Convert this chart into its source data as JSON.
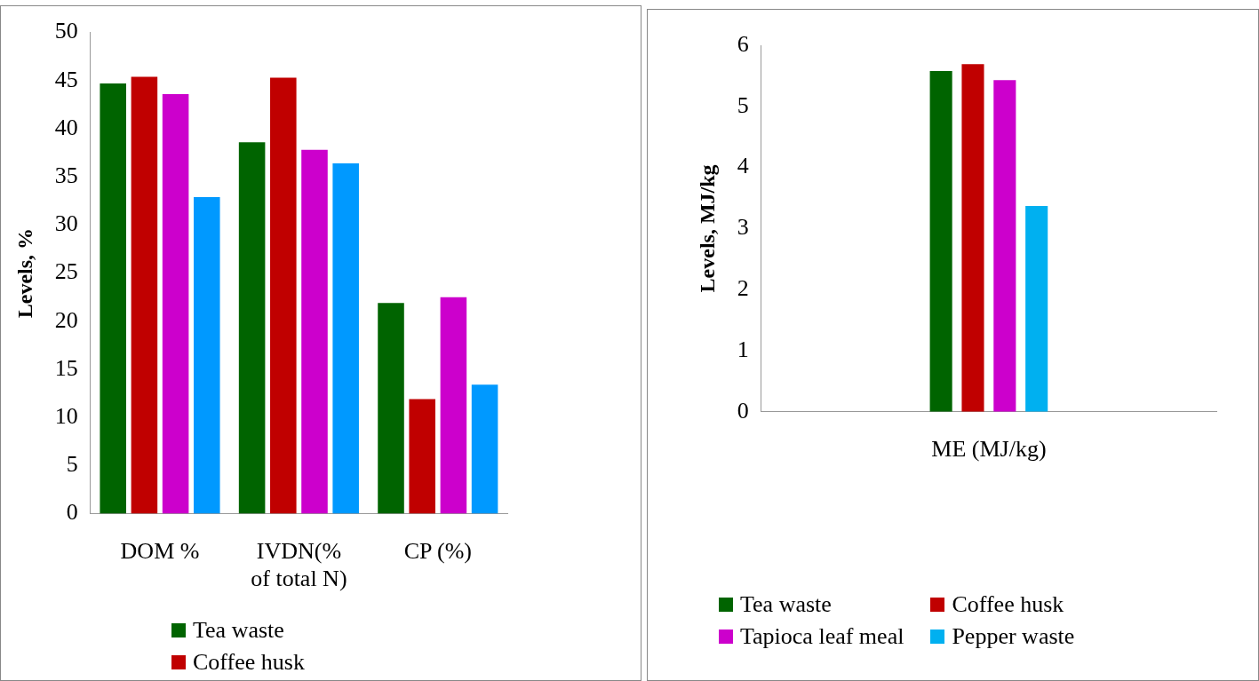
{
  "chart_data": [
    {
      "type": "bar",
      "ylabel": "Levels, %",
      "categories": [
        "DOM %",
        "IVDN(% of total N)",
        "CP (%)"
      ],
      "ylim": [
        0,
        50
      ],
      "yticks": [
        0,
        5,
        10,
        15,
        20,
        25,
        30,
        35,
        40,
        45,
        50
      ],
      "grid": false,
      "legend": "bottom",
      "series": [
        {
          "name": "Tea waste",
          "color": "#006400",
          "values": [
            44.7,
            38.6,
            21.9
          ]
        },
        {
          "name": "Coffee husk",
          "color": "#c00000",
          "values": [
            45.4,
            45.3,
            11.9
          ]
        },
        {
          "color": "#cc00cc",
          "values": [
            43.6,
            37.8,
            22.5
          ]
        },
        {
          "color": "#0099ff",
          "values": [
            32.9,
            36.4,
            13.4
          ]
        }
      ]
    },
    {
      "type": "bar",
      "ylabel": "Levels, MJ/kg",
      "categories": [
        "ME (MJ/kg)"
      ],
      "ylim": [
        0,
        6
      ],
      "yticks": [
        0,
        1,
        2,
        3,
        4,
        5,
        6
      ],
      "grid": false,
      "legend": "bottom",
      "series": [
        {
          "name": "Tea waste",
          "color": "#006400",
          "values": [
            5.58
          ]
        },
        {
          "name": "Coffee husk",
          "color": "#c00000",
          "values": [
            5.69
          ]
        },
        {
          "name": "Tapioca leaf meal",
          "color": "#cc00cc",
          "values": [
            5.43
          ]
        },
        {
          "name": "Pepper waste",
          "color": "#00b0f0",
          "values": [
            3.37
          ]
        }
      ]
    }
  ]
}
